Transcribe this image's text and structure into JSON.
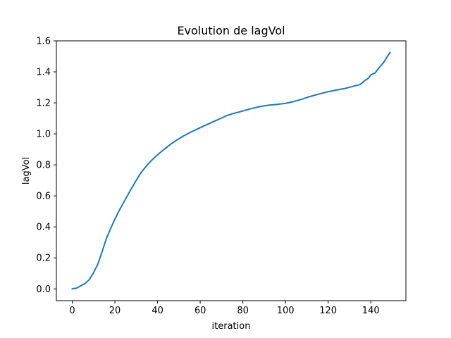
{
  "chart_data": {
    "type": "line",
    "title": "Evolution de lagVol",
    "xlabel": "iteration",
    "ylabel": "lagVol",
    "xlim": [
      -7.45,
      156.45
    ],
    "ylim": [
      -0.076,
      1.6
    ],
    "xticks": [
      0,
      20,
      40,
      60,
      80,
      100,
      120,
      140
    ],
    "yticks": [
      0.0,
      0.2,
      0.4,
      0.6,
      0.8,
      1.0,
      1.2,
      1.4,
      1.6
    ],
    "xtick_labels": [
      "0",
      "20",
      "40",
      "60",
      "80",
      "100",
      "120",
      "140"
    ],
    "ytick_labels": [
      "0.0",
      "0.2",
      "0.4",
      "0.6",
      "0.8",
      "1.0",
      "1.2",
      "1.4",
      "1.6"
    ],
    "grid": false,
    "legend": "none",
    "series": [
      {
        "color": "#1f77b4",
        "x": [
          0,
          2,
          4,
          6,
          8,
          10,
          12,
          14,
          16,
          18,
          20,
          22,
          24,
          26,
          28,
          30,
          32,
          34,
          36,
          38,
          40,
          42,
          44,
          46,
          48,
          50,
          52,
          54,
          56,
          58,
          60,
          62,
          64,
          66,
          68,
          70,
          72,
          74,
          76,
          78,
          80,
          84,
          88,
          92,
          96,
          100,
          104,
          108,
          112,
          116,
          120,
          124,
          128,
          132,
          135,
          137,
          139,
          140,
          142,
          144,
          146,
          148,
          149
        ],
        "y": [
          0.0,
          0.005,
          0.02,
          0.035,
          0.06,
          0.105,
          0.16,
          0.24,
          0.325,
          0.39,
          0.45,
          0.505,
          0.555,
          0.605,
          0.653,
          0.7,
          0.745,
          0.78,
          0.812,
          0.84,
          0.865,
          0.888,
          0.91,
          0.932,
          0.951,
          0.968,
          0.985,
          1.0,
          1.014,
          1.027,
          1.04,
          1.053,
          1.065,
          1.078,
          1.09,
          1.102,
          1.115,
          1.125,
          1.133,
          1.14,
          1.148,
          1.163,
          1.176,
          1.185,
          1.19,
          1.197,
          1.209,
          1.225,
          1.243,
          1.258,
          1.272,
          1.283,
          1.293,
          1.308,
          1.318,
          1.342,
          1.36,
          1.38,
          1.393,
          1.428,
          1.46,
          1.505,
          1.525
        ]
      }
    ]
  }
}
